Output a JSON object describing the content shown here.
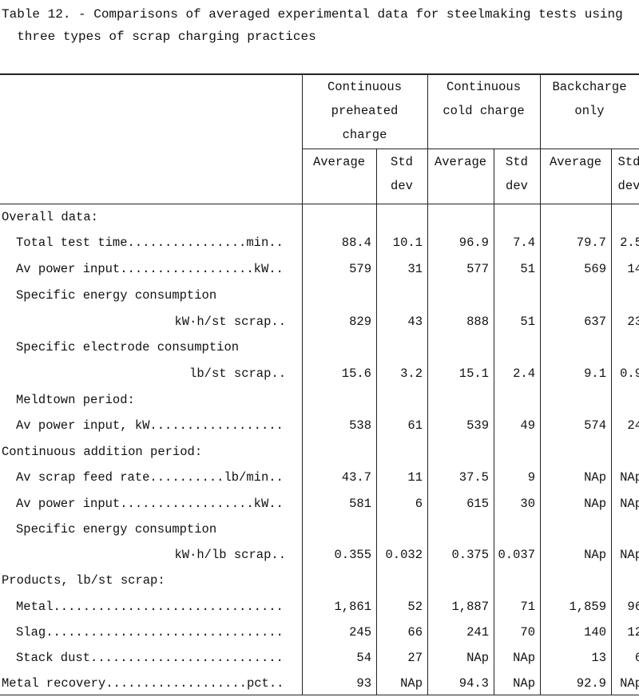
{
  "title": "Table 12. - Comparisons of averaged experimental data for steelmaking tests using\n  three types of scrap charging practices",
  "table": {
    "groups": [
      "Continuous\npreheated\ncharge",
      "Continuous\ncold charge",
      "Backcharge\nonly"
    ],
    "subheaders": [
      "Average",
      "Std\ndev",
      "Average",
      "Std\ndev",
      "Average",
      "Std\ndev"
    ],
    "rows": [
      {
        "label": "Overall data:",
        "values": null
      },
      {
        "label": "Total test time................min..",
        "values": [
          "88.4",
          "10.1",
          "96.9",
          "7.4",
          "79.7",
          "2.5"
        ]
      },
      {
        "label": "Av power input..................kW..",
        "values": [
          "579",
          "31",
          "577",
          "51",
          "569",
          "14"
        ]
      },
      {
        "label": "Specific energy consumption",
        "values": null
      },
      {
        "label": "kW·h/st scrap..",
        "values": [
          "829",
          "43",
          "888",
          "51",
          "637",
          "23"
        ]
      },
      {
        "label": "Specific electrode consumption",
        "values": null
      },
      {
        "label": "lb/st scrap..",
        "values": [
          "15.6",
          "3.2",
          "15.1",
          "2.4",
          "9.1",
          "0.9"
        ]
      },
      {
        "label": "Meldtown period:",
        "values": null
      },
      {
        "label": "Av power input, kW..................",
        "values": [
          "538",
          "61",
          "539",
          "49",
          "574",
          "24"
        ]
      },
      {
        "label": "Continuous addition period:",
        "values": null
      },
      {
        "label": "Av scrap feed rate..........lb/min..",
        "values": [
          "43.7",
          "11",
          "37.5",
          "9",
          "NAp",
          "NAp"
        ]
      },
      {
        "label": "Av power input..................kW..",
        "values": [
          "581",
          "6",
          "615",
          "30",
          "NAp",
          "NAp"
        ]
      },
      {
        "label": "Specific energy consumption",
        "values": null
      },
      {
        "label": "kW·h/lb scrap..",
        "values": [
          "0.355",
          "0.032",
          "0.375",
          "0.037",
          "NAp",
          "NAp"
        ]
      },
      {
        "label": "Products, lb/st scrap:",
        "values": null
      },
      {
        "label": "Metal...............................",
        "values": [
          "1,861",
          "52",
          "1,887",
          "71",
          "1,859",
          "96"
        ]
      },
      {
        "label": "Slag................................",
        "values": [
          "245",
          "66",
          "241",
          "70",
          "140",
          "12"
        ]
      },
      {
        "label": "Stack dust..........................",
        "values": [
          "54",
          "27",
          "NAp",
          "NAp",
          "13",
          "6"
        ]
      },
      {
        "label": "Metal recovery...................pct..",
        "values": [
          "93",
          "NAp",
          "94.3",
          "NAp",
          "92.9",
          "NAp"
        ]
      }
    ]
  }
}
